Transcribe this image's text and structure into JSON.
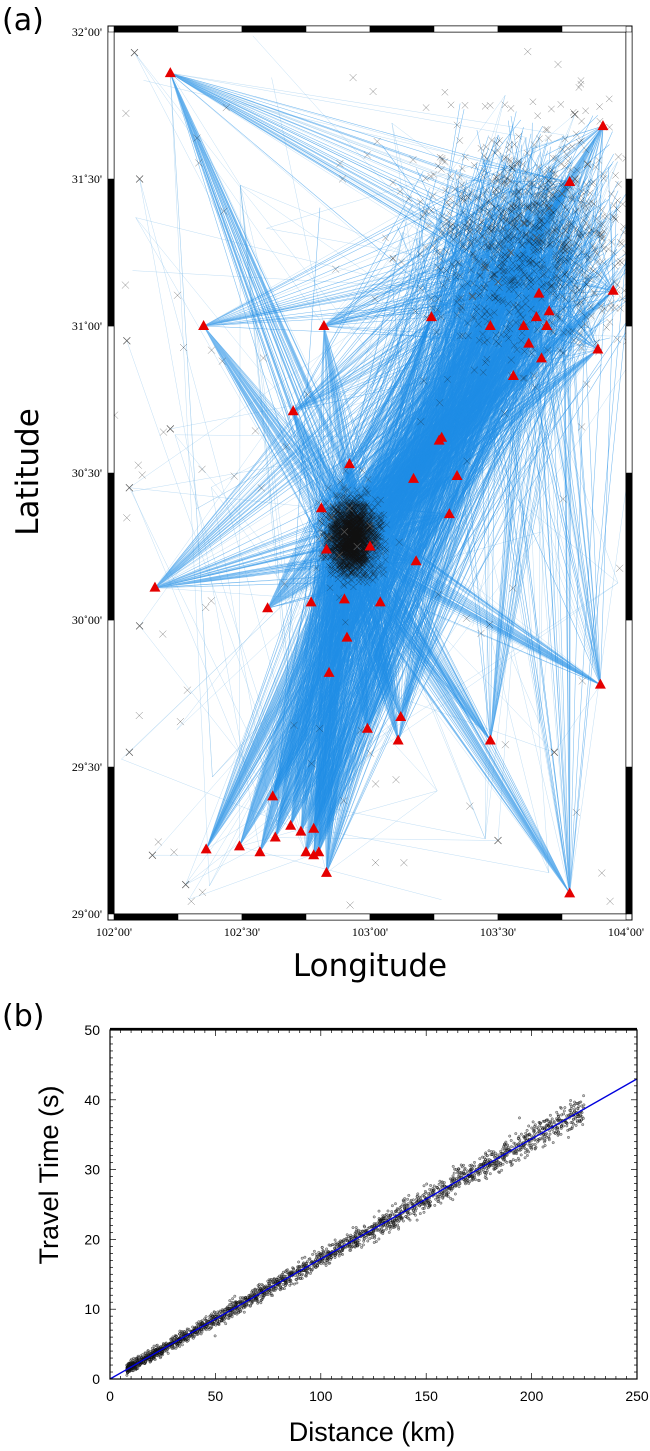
{
  "panel_a": {
    "label": "(a)",
    "x_axis_title": "Longitude",
    "y_axis_title": "Latitude"
  },
  "panel_b": {
    "label": "(b)",
    "x_axis_title": "Distance (km)",
    "y_axis_title": "Travel Time (s)"
  },
  "colors": {
    "ray": "#1f8ee6",
    "ray_faint": "#6fb3e6",
    "station": "#e50000",
    "event": "#111111",
    "fit_line": "#0000dd",
    "frame": "#000000"
  },
  "chart_data": [
    {
      "type": "map",
      "panel": "(a)",
      "xlabel": "Longitude",
      "ylabel": "Latitude",
      "xlim": [
        102.0,
        104.0
      ],
      "ylim": [
        29.0,
        32.0
      ],
      "x_ticks": [
        102.0,
        102.5,
        103.0,
        103.5,
        104.0
      ],
      "x_tick_labels": [
        "102˚00'",
        "102˚30'",
        "103˚00'",
        "103˚30'",
        "104˚00'"
      ],
      "y_ticks": [
        29.0,
        29.5,
        30.0,
        30.5,
        31.0,
        31.5,
        32.0
      ],
      "y_tick_labels": [
        "29˚00'",
        "29˚30'",
        "30˚00'",
        "30˚30'",
        "31˚00'",
        "31˚30'",
        "32˚00'"
      ],
      "legend": "none",
      "grid": false,
      "series": [
        {
          "kind": "stations",
          "marker": "triangle",
          "color": "#e50000",
          "points": [
            [
              102.22,
              31.86
            ],
            [
              102.35,
              31.0
            ],
            [
              102.82,
              31.0
            ],
            [
              103.91,
              31.68
            ],
            [
              103.78,
              31.49
            ],
            [
              103.95,
              31.12
            ],
            [
              103.66,
              31.11
            ],
            [
              103.7,
              31.05
            ],
            [
              103.65,
              31.03
            ],
            [
              103.6,
              31.0
            ],
            [
              103.69,
              31.0
            ],
            [
              103.47,
              31.0
            ],
            [
              103.24,
              31.03
            ],
            [
              103.89,
              30.92
            ],
            [
              103.67,
              30.89
            ],
            [
              103.62,
              30.94
            ],
            [
              103.56,
              30.83
            ],
            [
              102.7,
              30.71
            ],
            [
              103.28,
              30.62
            ],
            [
              103.27,
              30.61
            ],
            [
              102.92,
              30.53
            ],
            [
              103.17,
              30.48
            ],
            [
              103.34,
              30.49
            ],
            [
              102.81,
              30.38
            ],
            [
              103.31,
              30.36
            ],
            [
              102.83,
              30.24
            ],
            [
              103.0,
              30.25
            ],
            [
              103.18,
              30.2
            ],
            [
              102.16,
              30.11
            ],
            [
              102.6,
              30.04
            ],
            [
              102.77,
              30.06
            ],
            [
              102.9,
              30.07
            ],
            [
              103.04,
              30.06
            ],
            [
              102.91,
              29.94
            ],
            [
              102.84,
              29.82
            ],
            [
              103.9,
              29.78
            ],
            [
              103.12,
              29.67
            ],
            [
              102.99,
              29.63
            ],
            [
              103.11,
              29.59
            ],
            [
              103.47,
              29.59
            ],
            [
              102.62,
              29.4
            ],
            [
              102.69,
              29.3
            ],
            [
              102.73,
              29.28
            ],
            [
              102.78,
              29.29
            ],
            [
              102.49,
              29.23
            ],
            [
              102.63,
              29.26
            ],
            [
              102.36,
              29.22
            ],
            [
              102.57,
              29.21
            ],
            [
              102.75,
              29.21
            ],
            [
              102.8,
              29.21
            ],
            [
              102.78,
              29.2
            ],
            [
              102.83,
              29.14
            ],
            [
              103.78,
              29.07
            ]
          ]
        },
        {
          "kind": "event_cluster",
          "marker": "x",
          "color": "#111111",
          "center": [
            102.93,
            30.28
          ],
          "description_note": "dense earthquake cluster",
          "points": [
            [
              102.85,
              30.35
            ],
            [
              102.9,
              30.3
            ],
            [
              102.95,
              30.25
            ],
            [
              102.88,
              30.22
            ],
            [
              103.0,
              30.32
            ],
            [
              102.92,
              30.38
            ],
            [
              103.02,
              30.26
            ],
            [
              102.84,
              30.28
            ],
            [
              103.45,
              31.2
            ],
            [
              103.6,
              31.35
            ],
            [
              103.7,
              31.4
            ],
            [
              103.8,
              31.5
            ],
            [
              103.55,
              31.25
            ],
            [
              103.4,
              31.1
            ],
            [
              103.65,
              31.3
            ],
            [
              103.85,
              31.55
            ],
            [
              103.5,
              31.15
            ],
            [
              103.75,
              31.45
            ],
            [
              102.08,
              31.93
            ],
            [
              102.1,
              31.5
            ],
            [
              102.05,
              30.95
            ],
            [
              102.22,
              30.65
            ],
            [
              102.06,
              30.45
            ],
            [
              102.1,
              29.98
            ],
            [
              102.06,
              29.55
            ],
            [
              102.15,
              29.2
            ],
            [
              102.28,
              29.1
            ],
            [
              103.72,
              29.55
            ],
            [
              103.5,
              29.25
            ],
            [
              103.8,
              31.72
            ]
          ]
        }
      ]
    },
    {
      "type": "scatter",
      "panel": "(b)",
      "xlabel": "Distance (km)",
      "ylabel": "Travel Time (s)",
      "xlim": [
        0,
        250
      ],
      "ylim": [
        0,
        50
      ],
      "x_ticks": [
        0,
        50,
        100,
        150,
        200,
        250
      ],
      "y_ticks": [
        0,
        10,
        20,
        30,
        40,
        50
      ],
      "grid": false,
      "legend": "none",
      "series": [
        {
          "kind": "points",
          "color": "#111111",
          "x_range": [
            8,
            225
          ],
          "slope": 0.172,
          "points": [
            [
              10,
              1.7
            ],
            [
              20,
              3.4
            ],
            [
              30,
              5.2
            ],
            [
              40,
              6.9
            ],
            [
              50,
              8.6
            ],
            [
              60,
              10.3
            ],
            [
              70,
              12.0
            ],
            [
              80,
              13.8
            ],
            [
              90,
              15.5
            ],
            [
              100,
              17.2
            ],
            [
              110,
              18.9
            ],
            [
              120,
              20.6
            ],
            [
              130,
              22.4
            ],
            [
              140,
              24.1
            ],
            [
              150,
              25.8
            ],
            [
              160,
              27.5
            ],
            [
              170,
              29.2
            ],
            [
              180,
              31.0
            ],
            [
              190,
              32.7
            ],
            [
              200,
              34.4
            ],
            [
              210,
              36.1
            ],
            [
              220,
              37.8
            ]
          ]
        },
        {
          "kind": "fit_line",
          "color": "#0000dd",
          "points": [
            [
              0,
              0
            ],
            [
              250,
              43.0
            ]
          ]
        }
      ]
    }
  ]
}
